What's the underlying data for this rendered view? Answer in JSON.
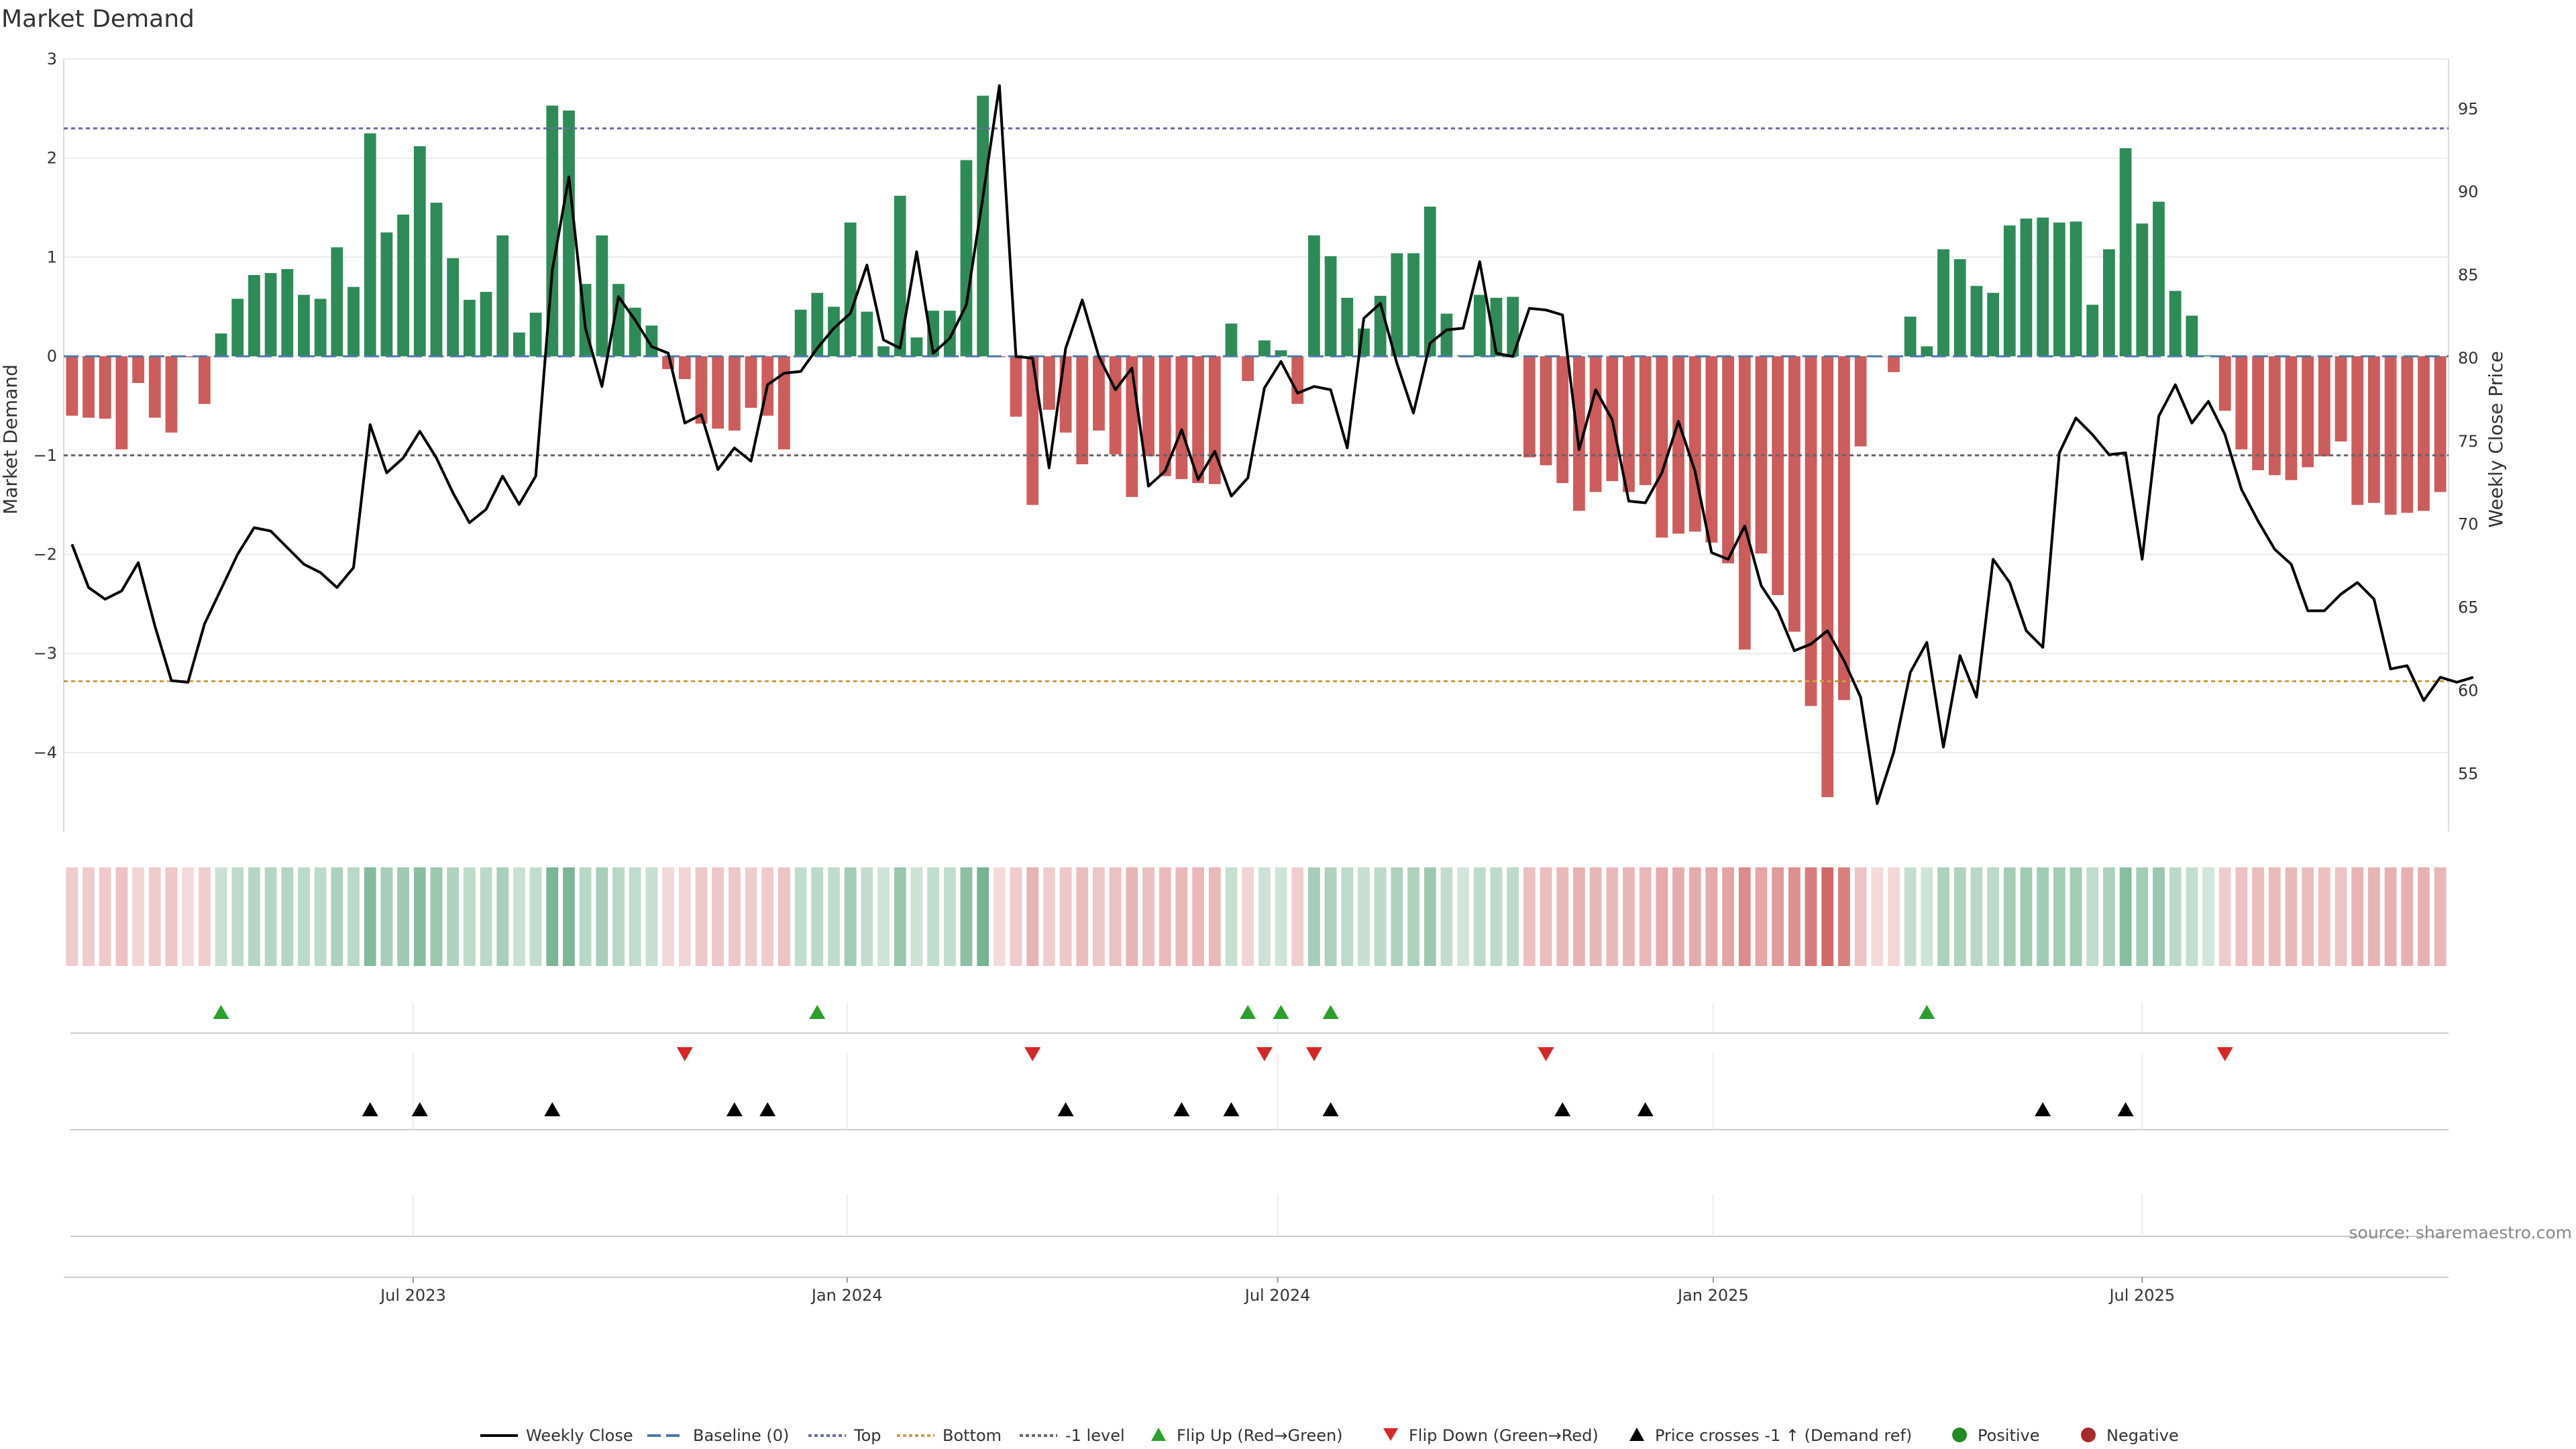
{
  "chart_data": {
    "type": "bar",
    "title": "Market Demand",
    "ylabel": "Market Demand",
    "y2label": "Weekly Close Price",
    "ylim": [
      -4.8,
      3
    ],
    "y2lim": [
      51.5,
      98
    ],
    "yticks": [
      3,
      2,
      1,
      0,
      -1,
      -2,
      -3,
      -4
    ],
    "yticklabels": [
      "3",
      "2",
      "1",
      "0",
      "−1",
      "−2",
      "−3",
      "−4"
    ],
    "y2ticks": [
      95,
      90,
      85,
      80,
      75,
      70,
      65,
      60,
      55
    ],
    "xlim": [
      -0.5,
      143.5
    ],
    "xticks": [
      {
        "label": "Jul 2023",
        "x": 20.6
      },
      {
        "label": "Jan 2024",
        "x": 46.8
      },
      {
        "label": "Jul 2024",
        "x": 72.8
      },
      {
        "label": "Jan 2025",
        "x": 99.1
      },
      {
        "label": "Jul 2025",
        "x": 125.0
      }
    ],
    "grid": true,
    "colors": {
      "positive": "#2e8b57",
      "negative": "#cd5c5c",
      "price": "#000000",
      "baseline": "#4c78a8",
      "top": "#6a6aaa",
      "bottom": "#c8a040",
      "minus1": "#666666",
      "flip_up": "#2ca02c",
      "flip_down": "#d62728",
      "cross": "#000000",
      "pos_dot": "#228b22",
      "neg_dot": "#a52a2a"
    },
    "levels": {
      "baseline": 0,
      "top": 2.3,
      "bottom": -3.28,
      "minus1": -1
    },
    "demand": [
      -0.6,
      -0.62,
      -0.63,
      -0.94,
      -0.27,
      -0.62,
      -0.77,
      -0.01,
      -0.48,
      0.23,
      0.58,
      0.82,
      0.84,
      0.88,
      0.62,
      0.58,
      1.1,
      0.7,
      2.25,
      1.25,
      1.43,
      2.12,
      1.55,
      0.99,
      0.57,
      0.65,
      1.22,
      0.24,
      0.44,
      2.53,
      2.48,
      0.73,
      1.22,
      0.73,
      0.49,
      0.31,
      -0.13,
      -0.23,
      -0.68,
      -0.73,
      -0.75,
      -0.52,
      -0.6,
      -0.94,
      0.47,
      0.64,
      0.5,
      1.35,
      0.45,
      0.1,
      1.62,
      0.19,
      0.46,
      0.46,
      1.98,
      2.63,
      -0.01,
      -0.61,
      -1.5,
      -0.54,
      -0.77,
      -1.09,
      -0.75,
      -0.99,
      -1.42,
      -1.01,
      -1.21,
      -1.24,
      -1.28,
      -1.29,
      0.33,
      -0.25,
      0.16,
      0.06,
      -0.48,
      1.22,
      1.01,
      0.59,
      0.28,
      0.61,
      1.04,
      1.04,
      1.51,
      0.43,
      0.01,
      0.62,
      0.59,
      0.6,
      -1.02,
      -1.1,
      -1.28,
      -1.56,
      -1.37,
      -1.26,
      -1.37,
      -1.3,
      -1.83,
      -1.79,
      -1.77,
      -1.88,
      -2.09,
      -2.96,
      -1.99,
      -2.41,
      -2.78,
      -3.53,
      -4.45,
      -3.47,
      -0.91,
      -0.01,
      -0.16,
      0.4,
      0.1,
      1.08,
      0.98,
      0.71,
      0.64,
      1.32,
      1.39,
      1.4,
      1.35,
      1.36,
      0.52,
      1.08,
      2.1,
      1.34,
      1.56,
      0.66,
      0.41,
      0.01,
      -0.55,
      -0.94,
      -1.15,
      -1.2,
      -1.25,
      -1.12,
      -1.01,
      -0.86,
      -1.5,
      -1.48,
      -1.6,
      -1.58,
      -1.56,
      -1.37
    ],
    "price": [
      68.8,
      66.2,
      65.5,
      66.0,
      67.7,
      63.9,
      60.6,
      60.5,
      64.0,
      66.1,
      68.2,
      69.8,
      69.6,
      68.6,
      67.6,
      67.1,
      66.2,
      67.4,
      76.0,
      73.1,
      74.0,
      75.6,
      74.0,
      71.9,
      70.1,
      70.9,
      72.9,
      71.2,
      72.9,
      85.3,
      90.9,
      81.8,
      78.3,
      83.7,
      82.3,
      80.7,
      80.3,
      76.1,
      76.6,
      73.3,
      74.6,
      73.8,
      78.4,
      79.1,
      79.2,
      80.6,
      81.8,
      82.7,
      85.6,
      81.1,
      80.6,
      86.4,
      80.3,
      81.2,
      83.2,
      89.7,
      96.4,
      80.1,
      80.0,
      73.4,
      80.6,
      83.5,
      80.1,
      78.1,
      79.4,
      72.3,
      73.2,
      75.7,
      72.7,
      74.4,
      71.7,
      72.8,
      78.2,
      79.8,
      77.9,
      78.3,
      78.1,
      74.6,
      82.4,
      83.3,
      79.7,
      76.7,
      80.9,
      81.7,
      81.8,
      85.8,
      80.3,
      80.1,
      83.0,
      82.9,
      82.6,
      74.5,
      78.1,
      76.3,
      71.4,
      71.3,
      73.1,
      76.2,
      73.2,
      68.3,
      67.9,
      69.9,
      66.3,
      64.8,
      62.4,
      62.8,
      63.6,
      61.8,
      59.6,
      53.2,
      56.3,
      61.1,
      62.9,
      56.6,
      62.1,
      59.6,
      67.9,
      66.5,
      63.6,
      62.6,
      74.3,
      76.4,
      75.4,
      74.2,
      74.3,
      67.9,
      76.5,
      78.4,
      76.1,
      77.4,
      75.4,
      72.1,
      70.2,
      68.5,
      67.6,
      64.8,
      64.8,
      65.8,
      66.5,
      65.5,
      61.3,
      61.5,
      59.4,
      60.8,
      60.5,
      60.8
    ],
    "flip_up": [
      9,
      45,
      71,
      73,
      76,
      112
    ],
    "flip_down": [
      37,
      58,
      72,
      75,
      89,
      130
    ],
    "price_cross_up": [
      18,
      21,
      29,
      40,
      42,
      60,
      67,
      70,
      76,
      90,
      95,
      119,
      124
    ],
    "legend": [
      "Weekly Close",
      "Baseline (0)",
      "Top",
      "Bottom",
      "-1 level",
      "Flip Up (Red→Green)",
      "Flip Down (Green→Red)",
      "Price crosses -1 ↑ (Demand ref)",
      "Positive",
      "Negative"
    ],
    "source": "source: sharemaestro.com"
  }
}
